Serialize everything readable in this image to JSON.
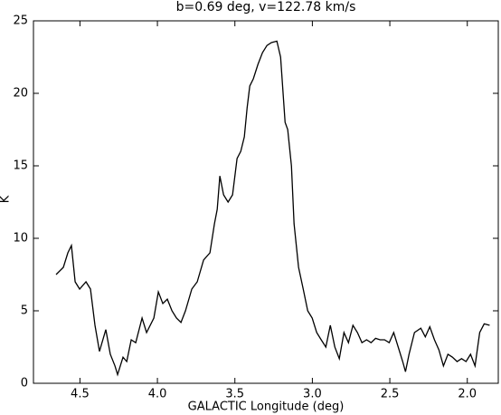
{
  "chart_data": {
    "type": "line",
    "title": "b=0.69 deg, v=122.78 km/s",
    "xlabel": "GALACTIC Longitude (deg)",
    "ylabel": "K",
    "xlim": [
      4.8,
      1.8
    ],
    "ylim": [
      0,
      25
    ],
    "xticks": [
      4.5,
      {
        "value": 4.0,
        "label": "4.0"
      },
      3.5,
      {
        "value": 3.0,
        "label": "3.0"
      },
      2.5,
      {
        "value": 2.0,
        "label": "2.0"
      }
    ],
    "yticks": [
      0,
      5,
      10,
      15,
      20,
      25
    ],
    "series": [
      {
        "color": "#000000",
        "x": [
          4.654,
          4.607,
          4.578,
          4.555,
          4.531,
          4.502,
          4.461,
          4.432,
          4.403,
          4.374,
          4.333,
          4.304,
          4.274,
          4.257,
          4.222,
          4.198,
          4.169,
          4.14,
          4.099,
          4.07,
          4.023,
          3.994,
          3.965,
          3.936,
          3.906,
          3.877,
          3.848,
          3.819,
          3.778,
          3.743,
          3.702,
          3.661,
          3.632,
          3.614,
          3.597,
          3.573,
          3.544,
          3.515,
          3.486,
          3.462,
          3.439,
          3.421,
          3.404,
          3.381,
          3.351,
          3.322,
          3.293,
          3.264,
          3.229,
          3.205,
          3.176,
          3.159,
          3.135,
          3.118,
          3.089,
          3.059,
          3.03,
          3.001,
          2.972,
          2.943,
          2.913,
          2.884,
          2.855,
          2.826,
          2.796,
          2.767,
          2.738,
          2.709,
          2.68,
          2.65,
          2.621,
          2.592,
          2.563,
          2.534,
          2.504,
          2.475,
          2.446,
          2.417,
          2.399,
          2.376,
          2.341,
          2.3,
          2.271,
          2.242,
          2.212,
          2.183,
          2.154,
          2.125,
          2.096,
          2.066,
          2.037,
          2.008,
          1.979,
          1.95,
          1.92,
          1.891,
          1.856
        ],
        "values": [
          7.5,
          8,
          9,
          9.5,
          7,
          6.5,
          7,
          6.5,
          4,
          2.2,
          3.7,
          2,
          1.2,
          0.6,
          1.8,
          1.5,
          3,
          2.8,
          4.5,
          3.5,
          4.5,
          6.3,
          5.5,
          5.8,
          5,
          4.5,
          4.2,
          5,
          6.5,
          7,
          8.5,
          9,
          11,
          12,
          14.3,
          13,
          12.5,
          13,
          15.5,
          16,
          17,
          19,
          20.5,
          21,
          22,
          22.8,
          23.3,
          23.5,
          23.6,
          22.5,
          18,
          17.5,
          15,
          11,
          8,
          6.5,
          5,
          4.5,
          3.5,
          3,
          2.5,
          4,
          2.5,
          1.7,
          3.5,
          2.8,
          4,
          3.5,
          2.8,
          3,
          2.8,
          3.1,
          3,
          3,
          2.8,
          3.5,
          2.5,
          1.5,
          0.8,
          2,
          3.5,
          3.8,
          3.2,
          3.9,
          3,
          2.3,
          1.2,
          2,
          1.8,
          1.5,
          1.7,
          1.5,
          2,
          1.2,
          3.5,
          4.1,
          4
        ]
      }
    ]
  }
}
